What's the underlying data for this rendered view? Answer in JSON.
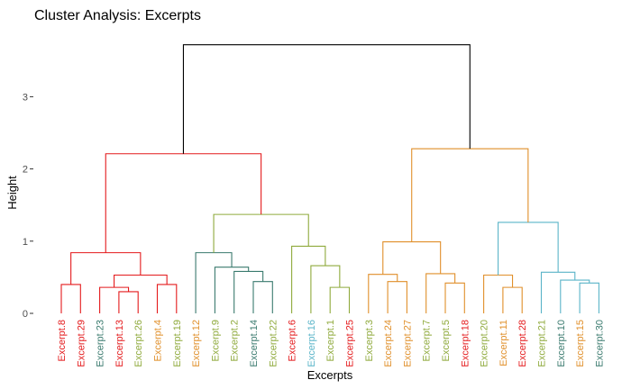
{
  "chart_data": {
    "type": "dendrogram",
    "title": "Cluster Analysis: Excerpts",
    "xlabel": "Excerpts",
    "ylabel": "Height",
    "ylim": [
      0,
      3.75
    ],
    "yticks": [
      0,
      1,
      2,
      3
    ],
    "grid": false,
    "legend": "none",
    "leaves": [
      {
        "label": "Excerpt.8",
        "color": "#e41a1c"
      },
      {
        "label": "Excerpt.29",
        "color": "#e41a1c"
      },
      {
        "label": "Excerpt.23",
        "color": "#3a7a6e"
      },
      {
        "label": "Excerpt.13",
        "color": "#e41a1c"
      },
      {
        "label": "Excerpt.26",
        "color": "#8faa3c"
      },
      {
        "label": "Excerpt.4",
        "color": "#e08f2a"
      },
      {
        "label": "Excerpt.19",
        "color": "#8faa3c"
      },
      {
        "label": "Excerpt.12",
        "color": "#e08f2a"
      },
      {
        "label": "Excerpt.9",
        "color": "#8faa3c"
      },
      {
        "label": "Excerpt.2",
        "color": "#8faa3c"
      },
      {
        "label": "Excerpt.14",
        "color": "#3a7a6e"
      },
      {
        "label": "Excerpt.22",
        "color": "#8faa3c"
      },
      {
        "label": "Excerpt.6",
        "color": "#e41a1c"
      },
      {
        "label": "Excerpt.16",
        "color": "#5ab4c8"
      },
      {
        "label": "Excerpt.1",
        "color": "#8faa3c"
      },
      {
        "label": "Excerpt.25",
        "color": "#e41a1c"
      },
      {
        "label": "Excerpt.3",
        "color": "#8faa3c"
      },
      {
        "label": "Excerpt.24",
        "color": "#e08f2a"
      },
      {
        "label": "Excerpt.27",
        "color": "#e08f2a"
      },
      {
        "label": "Excerpt.7",
        "color": "#8faa3c"
      },
      {
        "label": "Excerpt.5",
        "color": "#8faa3c"
      },
      {
        "label": "Excerpt.18",
        "color": "#e41a1c"
      },
      {
        "label": "Excerpt.20",
        "color": "#8faa3c"
      },
      {
        "label": "Excerpt.11",
        "color": "#e08f2a"
      },
      {
        "label": "Excerpt.28",
        "color": "#e41a1c"
      },
      {
        "label": "Excerpt.21",
        "color": "#8faa3c"
      },
      {
        "label": "Excerpt.10",
        "color": "#3a7a6e"
      },
      {
        "label": "Excerpt.15",
        "color": "#e08f2a"
      },
      {
        "label": "Excerpt.30",
        "color": "#3a7a6e"
      }
    ],
    "merges": [
      {
        "id": "m1",
        "left": "L0",
        "right": "L1",
        "height": 0.4,
        "color": "#e41a1c"
      },
      {
        "id": "m2",
        "left": "L3",
        "right": "L4",
        "height": 0.3,
        "color": "#e41a1c"
      },
      {
        "id": "m3",
        "left": "L2",
        "right": "m2",
        "height": 0.36,
        "color": "#e41a1c"
      },
      {
        "id": "m4",
        "left": "L5",
        "right": "L6",
        "height": 0.4,
        "color": "#e41a1c"
      },
      {
        "id": "m5",
        "left": "m3",
        "right": "m4",
        "height": 0.53,
        "color": "#e41a1c"
      },
      {
        "id": "m6",
        "left": "m1",
        "right": "m5",
        "height": 0.84,
        "color": "#e41a1c"
      },
      {
        "id": "m7",
        "left": "L10",
        "right": "L11",
        "height": 0.44,
        "color": "#3a7a6e"
      },
      {
        "id": "m8",
        "left": "L9",
        "right": "m7",
        "height": 0.58,
        "color": "#3a7a6e"
      },
      {
        "id": "m9",
        "left": "L8",
        "right": "m8",
        "height": 0.64,
        "color": "#3a7a6e"
      },
      {
        "id": "m10",
        "left": "L7",
        "right": "m9",
        "height": 0.84,
        "color": "#3a7a6e"
      },
      {
        "id": "m11",
        "left": "L14",
        "right": "L15",
        "height": 0.36,
        "color": "#8faa3c"
      },
      {
        "id": "m12",
        "left": "L13",
        "right": "m11",
        "height": 0.66,
        "color": "#8faa3c"
      },
      {
        "id": "m13",
        "left": "L12",
        "right": "m12",
        "height": 0.93,
        "color": "#8faa3c"
      },
      {
        "id": "m14",
        "left": "m10",
        "right": "m13",
        "height": 1.37,
        "color": "#8faa3c"
      },
      {
        "id": "m15",
        "left": "m6",
        "right": "m14",
        "height": 2.21,
        "color": "#e41a1c"
      },
      {
        "id": "m16",
        "left": "L17",
        "right": "L18",
        "height": 0.44,
        "color": "#e08f2a"
      },
      {
        "id": "m17",
        "left": "L16",
        "right": "m16",
        "height": 0.54,
        "color": "#e08f2a"
      },
      {
        "id": "m18",
        "left": "L20",
        "right": "L21",
        "height": 0.42,
        "color": "#e08f2a"
      },
      {
        "id": "m19",
        "left": "L19",
        "right": "m18",
        "height": 0.55,
        "color": "#e08f2a"
      },
      {
        "id": "m20",
        "left": "m17",
        "right": "m19",
        "height": 0.99,
        "color": "#e08f2a"
      },
      {
        "id": "m21",
        "left": "L23",
        "right": "L24",
        "height": 0.36,
        "color": "#e08f2a"
      },
      {
        "id": "m22",
        "left": "L22",
        "right": "m21",
        "height": 0.53,
        "color": "#e08f2a"
      },
      {
        "id": "m23",
        "left": "L27",
        "right": "L28",
        "height": 0.42,
        "color": "#5ab4c8"
      },
      {
        "id": "m24",
        "left": "L26",
        "right": "m23",
        "height": 0.46,
        "color": "#5ab4c8"
      },
      {
        "id": "m25",
        "left": "L25",
        "right": "m24",
        "height": 0.57,
        "color": "#5ab4c8"
      },
      {
        "id": "m26",
        "left": "m22",
        "right": "m25",
        "height": 1.26,
        "color": "#5ab4c8"
      },
      {
        "id": "m27",
        "left": "m20",
        "right": "m26",
        "height": 2.28,
        "color": "#e08f2a"
      },
      {
        "id": "m28",
        "left": "m15",
        "right": "m27",
        "height": 3.72,
        "color": "#000000"
      }
    ]
  }
}
